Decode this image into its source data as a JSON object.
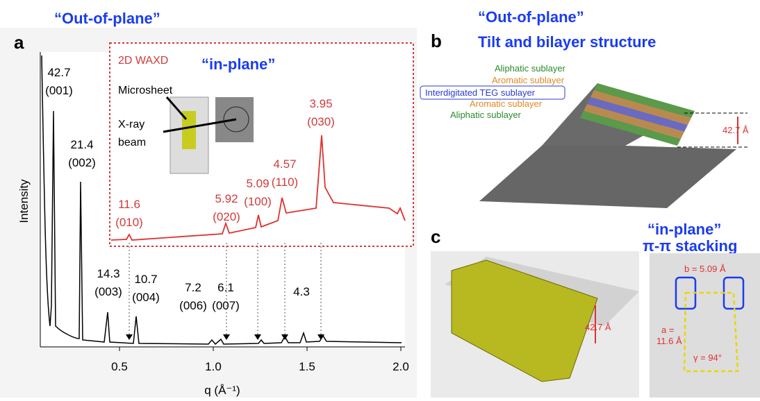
{
  "panel_a": {
    "letter": "a",
    "heading": "“Out-of-plane”",
    "inset": {
      "label": "2D WAXD",
      "heading": "“in-plane”",
      "microsheet": "Microsheet",
      "xray": [
        "X-ray",
        "beam"
      ],
      "peaks": [
        {
          "d": "11.6",
          "hkl": "(010)"
        },
        {
          "d": "5.92",
          "hkl": "(020)"
        },
        {
          "d": "5.09",
          "hkl": "(100)"
        },
        {
          "d": "4.57",
          "hkl": "(110)"
        },
        {
          "d": "3.95",
          "hkl": "(030)"
        }
      ]
    },
    "peaks": [
      {
        "d": "42.7",
        "hkl": "(001)"
      },
      {
        "d": "21.4",
        "hkl": "(002)"
      },
      {
        "d": "14.3",
        "hkl": "(003)"
      },
      {
        "d": "10.7",
        "hkl": "(004)"
      },
      {
        "d": "7.2",
        "hkl": "(006)"
      },
      {
        "d": "6.1",
        "hkl": "(007)"
      },
      {
        "d": "4.3"
      }
    ],
    "y_axis_label": "Intensity",
    "x_ticks": [
      "0.5",
      "1.0",
      "1.5",
      "2.0"
    ],
    "x_axis_label": "q (Å⁻¹)"
  },
  "panel_b": {
    "letter": "b",
    "heading": [
      "“Out-of-plane”",
      "Tilt and bilayer structure"
    ],
    "layers": [
      "Aliphatic sublayer",
      "Aromatic sublayer",
      "Interdigitated TEG sublayer",
      "Aromatic sublayer",
      "Aliphatic sublayer"
    ],
    "spacing": "42.7 Å"
  },
  "panel_c": {
    "letter": "c",
    "heading": [
      "“in-plane”",
      "π-π stacking"
    ],
    "spacing": "42.7 Å",
    "b": "b = 5.09 Å",
    "a": [
      "a =",
      "11.6 Å"
    ],
    "gamma": "γ = 94°"
  }
}
